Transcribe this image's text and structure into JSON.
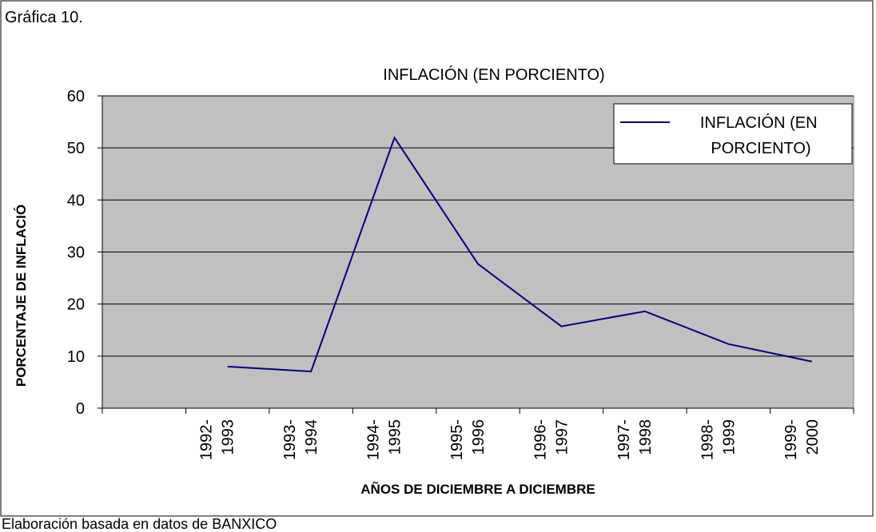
{
  "header": {
    "title": "Gráfica 10."
  },
  "chart_data": {
    "type": "line",
    "title": "INFLACIÓN (EN PORCIENTO)",
    "x_label": "AÑOS DE DICIEMBRE A DICIEMBRE",
    "y_label": "PORCENTAJE DE INFLACIÓ",
    "categories": [
      null,
      "1992-1993",
      "1993-1994",
      "1994-1995",
      "1995-1996",
      "1996-1997",
      "1997-1998",
      "1998-1999",
      "1999-2000"
    ],
    "series": [
      {
        "name": "INFLACIÓN (EN PORCIENTO)",
        "color": "#000080",
        "values": [
          null,
          8.0,
          7.05,
          51.97,
          27.7,
          15.72,
          18.61,
          12.32,
          8.96
        ]
      }
    ],
    "ylim": [
      0,
      60
    ],
    "yticks": [
      0,
      10,
      20,
      30,
      40,
      50,
      60
    ],
    "grid": true,
    "legend": "upper right"
  },
  "footer": {
    "text": "Elaboración basada en datos de BANXICO"
  }
}
